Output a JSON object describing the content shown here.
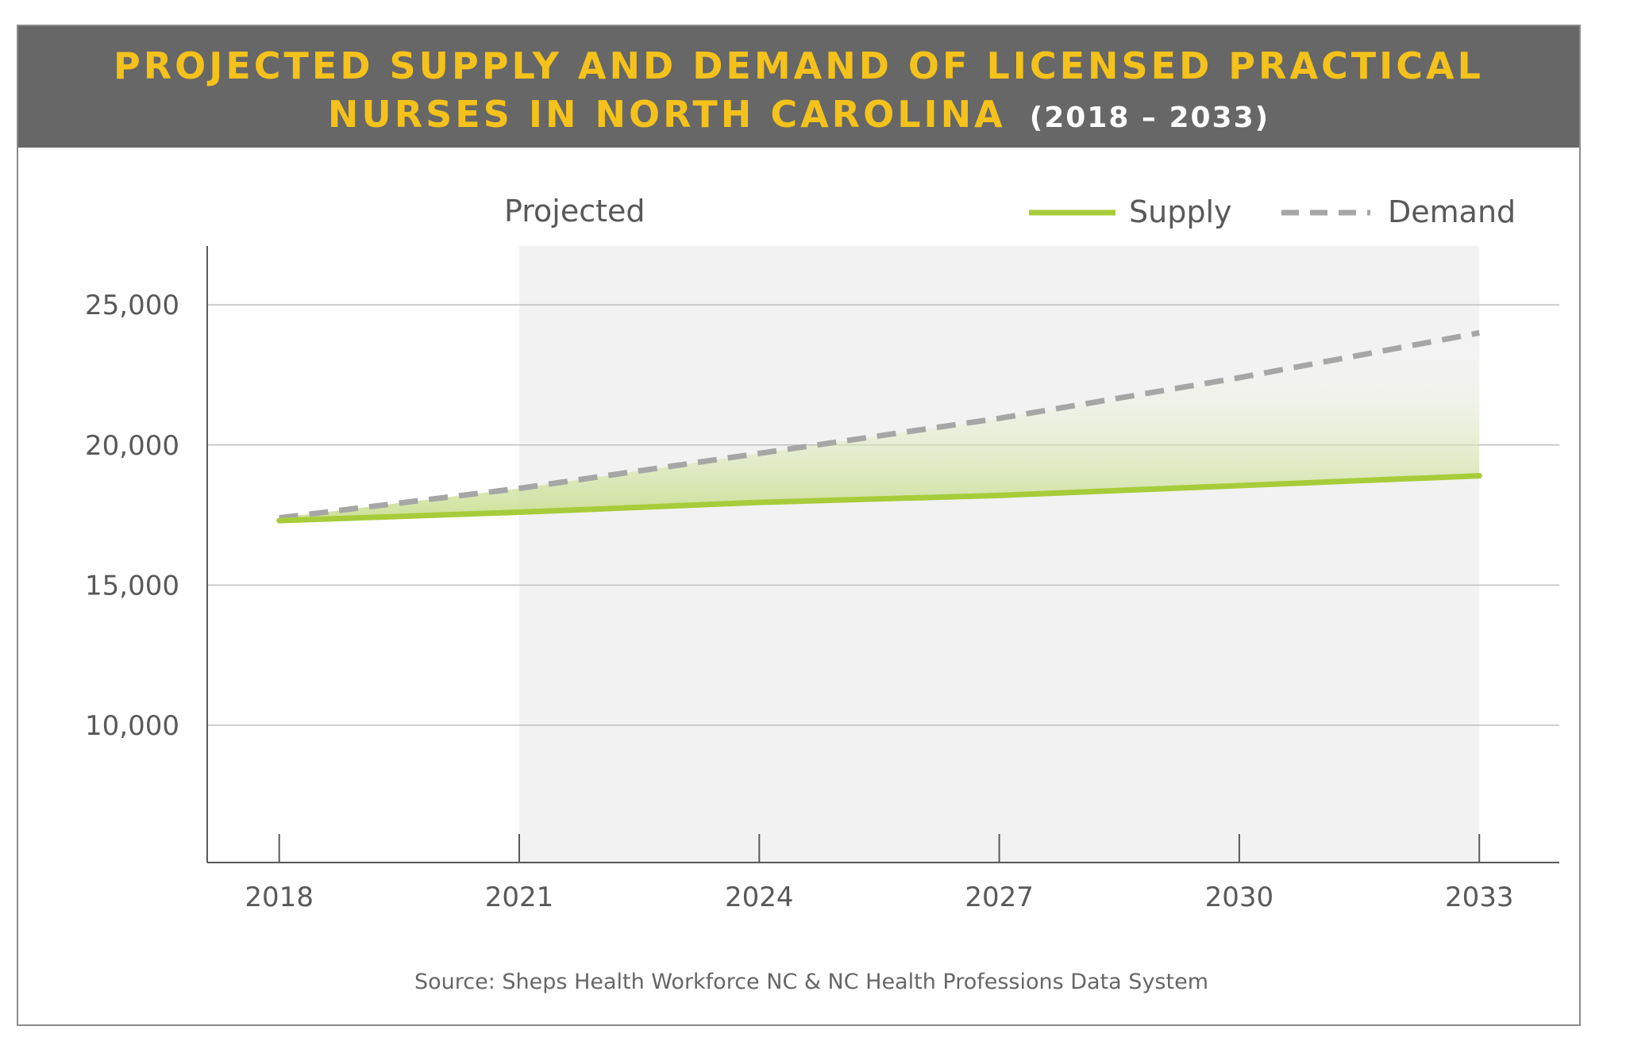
{
  "header": {
    "title_line_1": "PROJECTED SUPPLY AND DEMAND OF LICENSED PRACTICAL",
    "title_line_2": "NURSES IN NORTH CAROLINA",
    "title_years": "(2018 – 2033)"
  },
  "projected_label": "Projected",
  "source": "Source: Sheps Health Workforce NC & NC Health Professions Data System",
  "colors": {
    "header_bg": "#666766",
    "title": "#f5c21b",
    "supply": "#a7cc3a",
    "demand": "#a6a6a6",
    "projected_bg": "#f2f2f2",
    "gridline": "#bfbfbf"
  },
  "chart_data": {
    "type": "line",
    "title": "PROJECTED SUPPLY AND DEMAND OF LICENSED PRACTICAL NURSES IN NORTH CAROLINA (2018 – 2033)",
    "xlabel": "",
    "ylabel": "",
    "x": [
      2018,
      2021,
      2024,
      2027,
      2030,
      2033
    ],
    "x_ticks": [
      "2018",
      "2021",
      "2024",
      "2027",
      "2030",
      "2033"
    ],
    "y_ticks": [
      "10,000",
      "15,000",
      "20,000",
      "25,000"
    ],
    "y_tick_values": [
      10000,
      15000,
      20000,
      25000
    ],
    "ylim": [
      5100,
      27100
    ],
    "xlim": [
      2017.1,
      2034
    ],
    "projected_range": [
      2021,
      2033
    ],
    "grid": true,
    "legend_position": "top-right",
    "series": [
      {
        "name": "Supply",
        "style": "solid",
        "values": [
          17300,
          17600,
          17950,
          18200,
          18550,
          18900
        ]
      },
      {
        "name": "Demand",
        "style": "dashed",
        "values": [
          17400,
          18450,
          19700,
          20950,
          22400,
          24000
        ]
      }
    ],
    "gap_fill": "gradient between Demand and Supply in projected range"
  }
}
